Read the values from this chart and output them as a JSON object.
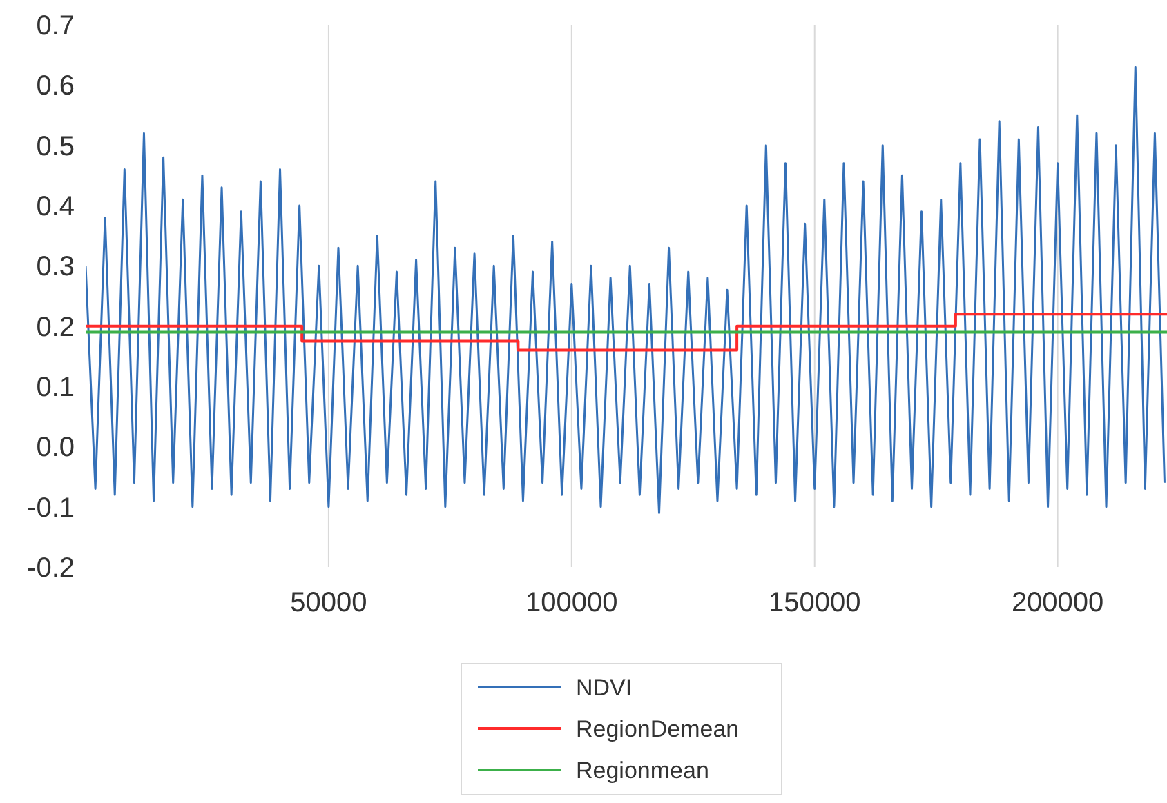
{
  "chart_data": {
    "type": "line",
    "xlim": [
      0,
      222500
    ],
    "xticks": [
      50000,
      100000,
      150000,
      200000
    ],
    "ylim": [
      -0.2,
      0.7
    ],
    "yticks": [
      -0.2,
      -0.1,
      {
        "value": 0,
        "label": "0.0"
      },
      0.1,
      0.2,
      0.3,
      0.4,
      0.5,
      0.6,
      0.7
    ],
    "grid": "x",
    "legend": "bottom",
    "series": [
      {
        "name": "NDVI",
        "color": "#3470b8",
        "x": [
          0,
          2000,
          4000,
          6000,
          8000,
          10000,
          12000,
          14000,
          16000,
          18000,
          20000,
          22000,
          24000,
          26000,
          28000,
          30000,
          32000,
          34000,
          36000,
          38000,
          40000,
          42000,
          44000,
          46000,
          48000,
          50000,
          52000,
          54000,
          56000,
          58000,
          60000,
          62000,
          64000,
          66000,
          68000,
          70000,
          72000,
          74000,
          76000,
          78000,
          80000,
          82000,
          84000,
          86000,
          88000,
          90000,
          92000,
          94000,
          96000,
          98000,
          100000,
          102000,
          104000,
          106000,
          108000,
          110000,
          112000,
          114000,
          116000,
          118000,
          120000,
          122000,
          124000,
          126000,
          128000,
          130000,
          132000,
          134000,
          136000,
          138000,
          140000,
          142000,
          144000,
          146000,
          148000,
          150000,
          152000,
          154000,
          156000,
          158000,
          160000,
          162000,
          164000,
          166000,
          168000,
          170000,
          172000,
          174000,
          176000,
          178000,
          180000,
          182000,
          184000,
          186000,
          188000,
          190000,
          192000,
          194000,
          196000,
          198000,
          200000,
          202000,
          204000,
          206000,
          208000,
          210000,
          212000,
          214000,
          216000,
          218000,
          220000,
          222000
        ],
        "values": [
          0.3,
          -0.07,
          0.38,
          -0.08,
          0.46,
          -0.06,
          0.52,
          -0.09,
          0.48,
          -0.06,
          0.41,
          -0.1,
          0.45,
          -0.07,
          0.43,
          -0.08,
          0.39,
          -0.06,
          0.44,
          -0.09,
          0.46,
          -0.07,
          0.4,
          -0.06,
          0.3,
          -0.1,
          0.33,
          -0.07,
          0.3,
          -0.09,
          0.35,
          -0.06,
          0.29,
          -0.08,
          0.31,
          -0.07,
          0.44,
          -0.1,
          0.33,
          -0.06,
          0.32,
          -0.08,
          0.3,
          -0.07,
          0.35,
          -0.09,
          0.29,
          -0.06,
          0.34,
          -0.08,
          0.27,
          -0.07,
          0.3,
          -0.1,
          0.28,
          -0.06,
          0.3,
          -0.08,
          0.27,
          -0.11,
          0.33,
          -0.07,
          0.29,
          -0.06,
          0.28,
          -0.09,
          0.26,
          -0.07,
          0.4,
          -0.08,
          0.5,
          -0.06,
          0.47,
          -0.09,
          0.37,
          -0.07,
          0.41,
          -0.1,
          0.47,
          -0.06,
          0.44,
          -0.08,
          0.5,
          -0.09,
          0.45,
          -0.07,
          0.39,
          -0.1,
          0.41,
          -0.06,
          0.47,
          -0.08,
          0.51,
          -0.07,
          0.54,
          -0.09,
          0.51,
          -0.06,
          0.53,
          -0.1,
          0.47,
          -0.07,
          0.55,
          -0.08,
          0.52,
          -0.1,
          0.5,
          -0.06,
          0.63,
          -0.07,
          0.52,
          -0.06
        ]
      },
      {
        "name": "RegionDemean",
        "color": "#ff2b2b",
        "type": "step",
        "x": [
          0,
          44500,
          89000,
          134000,
          179000,
          222500
        ],
        "values": [
          0.2,
          0.175,
          0.16,
          0.2,
          0.22,
          0.22
        ]
      },
      {
        "name": "Regionmean",
        "color": "#3cb04a",
        "x": [
          0,
          222500
        ],
        "values": [
          0.19,
          0.19
        ]
      }
    ]
  }
}
